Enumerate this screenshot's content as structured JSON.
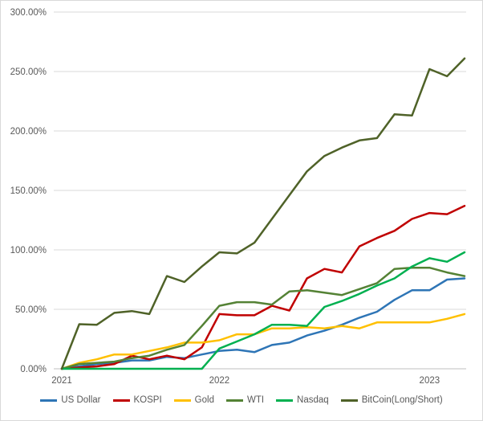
{
  "chart_data": {
    "type": "line",
    "title": "",
    "xlabel": "",
    "ylabel": "",
    "ylim": [
      0,
      300
    ],
    "grid": true,
    "legend_position": "bottom",
    "y_ticks": [
      {
        "value": 300,
        "label": "300.00%"
      },
      {
        "value": 250,
        "label": "250.00%"
      },
      {
        "value": 200,
        "label": "200.00%"
      },
      {
        "value": 150,
        "label": "150.00%"
      },
      {
        "value": 100,
        "label": "100.00%"
      },
      {
        "value": 50,
        "label": "50.00%"
      },
      {
        "value": 0,
        "label": "0.00%"
      }
    ],
    "n_points": 24,
    "x_axis_labels": [
      {
        "index": 0,
        "label": "2021"
      },
      {
        "index": 9,
        "label": "2022"
      },
      {
        "index": 21,
        "label": "2023"
      }
    ],
    "series": [
      {
        "name": "US Dollar",
        "color": "#2E75B6",
        "values": [
          0,
          2,
          4,
          5,
          7,
          7,
          10,
          9,
          12,
          15,
          16,
          14,
          20,
          22,
          28,
          32,
          37,
          43,
          48,
          58,
          66,
          66,
          75,
          76
        ]
      },
      {
        "name": "KOSPI",
        "color": "#C00000",
        "values": [
          0,
          1,
          2,
          4,
          11,
          8,
          11,
          8,
          18,
          46,
          45,
          45,
          53,
          49,
          76,
          84,
          81,
          103,
          110,
          116,
          126,
          131,
          130,
          137
        ]
      },
      {
        "name": "Gold",
        "color": "#FFC000",
        "values": [
          0,
          5,
          8,
          12,
          12,
          15,
          18,
          22,
          22,
          24,
          29,
          29,
          34,
          34,
          35,
          34,
          36,
          34,
          39,
          39,
          39,
          39,
          42,
          46
        ]
      },
      {
        "name": "WTI",
        "color": "#548235",
        "values": [
          0,
          4,
          5,
          6,
          9,
          11,
          16,
          20,
          36,
          53,
          56,
          56,
          54,
          65,
          66,
          64,
          62,
          67,
          72,
          84,
          85,
          85,
          81,
          78
        ]
      },
      {
        "name": "Nasdaq",
        "color": "#00B050",
        "values": [
          0,
          0,
          0,
          0,
          0,
          0,
          0,
          0,
          0,
          17,
          23,
          29,
          37,
          37,
          36,
          52,
          57,
          63,
          70,
          76,
          86,
          93,
          90,
          98
        ]
      },
      {
        "name": "BitCoin(Long/Short)",
        "color": "#4F6228",
        "values": [
          0,
          37.5,
          37,
          47,
          48.5,
          46,
          78,
          73,
          86,
          98,
          97,
          106,
          126,
          146,
          166,
          179,
          186,
          192,
          194,
          214,
          213,
          252,
          246,
          261
        ]
      }
    ],
    "axis_color": "#BFBFBF",
    "gridline_color": "#D9D9D9",
    "tick_label_color": "#595959"
  }
}
